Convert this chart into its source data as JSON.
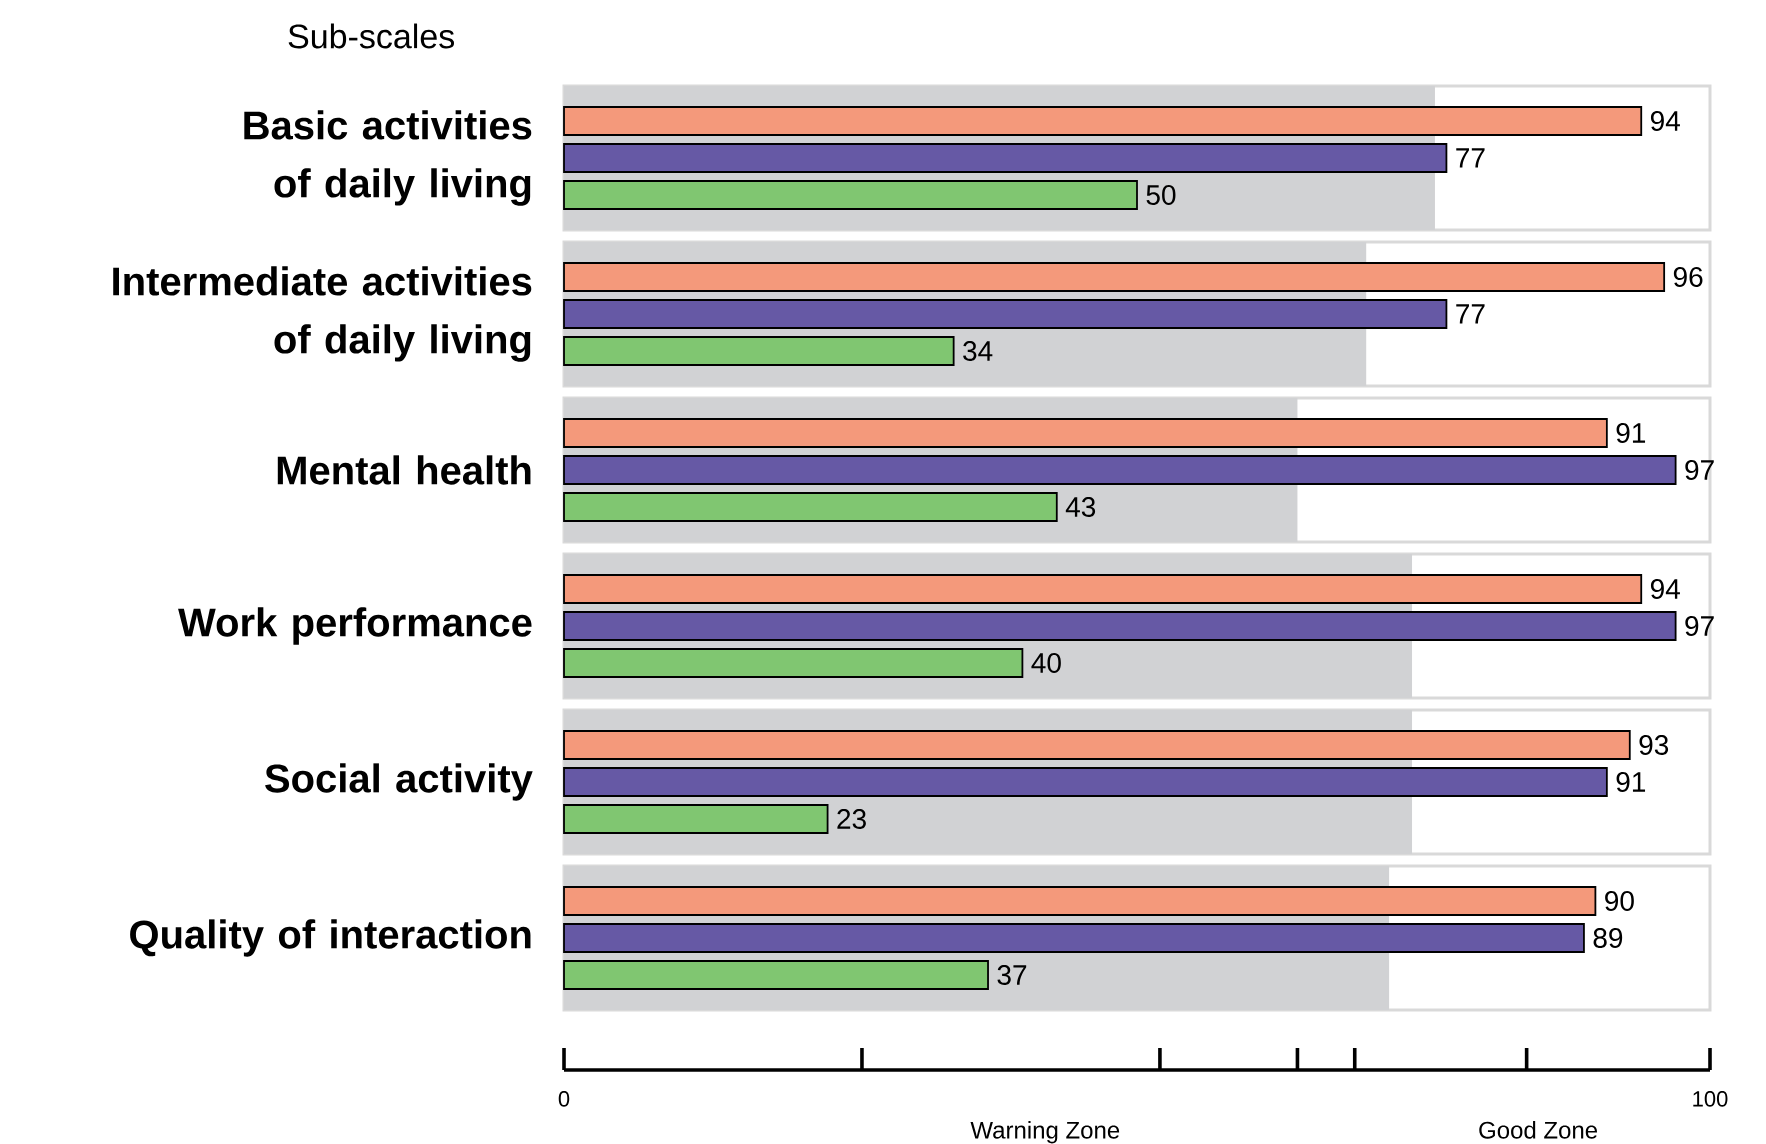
{
  "chart_data": [
    {
      "type": "bar",
      "orientation": "horizontal",
      "title": "Sub-scales",
      "categories": [
        "Basic activities of daily living"
      ],
      "series": [
        {
          "color": "#f4997b",
          "values": [
            94
          ]
        },
        {
          "color": "#6659a5",
          "values": [
            77
          ]
        },
        {
          "color": "#80c671",
          "values": [
            50
          ]
        }
      ],
      "bands": [
        {
          "axis": "x",
          "from": 0,
          "to": 76,
          "color": "#d1d2d4"
        }
      ],
      "xlim": [
        0,
        100
      ],
      "tick_labels": "y",
      "data_labels": true
    },
    {
      "type": "bar",
      "orientation": "horizontal",
      "categories": [
        "Intermediate activities of daily living"
      ],
      "series": [
        {
          "color": "#f4997b",
          "values": [
            96
          ]
        },
        {
          "color": "#6659a5",
          "values": [
            77
          ]
        },
        {
          "color": "#80c671",
          "values": [
            34
          ]
        }
      ],
      "bands": [
        {
          "axis": "x",
          "from": 0,
          "to": 70,
          "color": "#d1d2d4"
        }
      ],
      "xlim": [
        0,
        100
      ],
      "tick_labels": "y",
      "data_labels": true
    },
    {
      "type": "bar",
      "orientation": "horizontal",
      "categories": [
        "Mental health"
      ],
      "series": [
        {
          "color": "#f4997b",
          "values": [
            91
          ]
        },
        {
          "color": "#6659a5",
          "values": [
            97
          ]
        },
        {
          "color": "#80c671",
          "values": [
            43
          ]
        }
      ],
      "bands": [
        {
          "axis": "x",
          "from": 0,
          "to": 64,
          "color": "#d1d2d4"
        }
      ],
      "xlim": [
        0,
        100
      ],
      "tick_labels": "y",
      "data_labels": true
    },
    {
      "type": "bar",
      "orientation": "horizontal",
      "categories": [
        "Work performance"
      ],
      "series": [
        {
          "color": "#f4997b",
          "values": [
            94
          ]
        },
        {
          "color": "#6659a5",
          "values": [
            97
          ]
        },
        {
          "color": "#80c671",
          "values": [
            40
          ]
        }
      ],
      "bands": [
        {
          "axis": "x",
          "from": 0,
          "to": 74,
          "color": "#d1d2d4"
        }
      ],
      "xlim": [
        0,
        100
      ],
      "tick_labels": "y",
      "data_labels": true
    },
    {
      "type": "bar",
      "orientation": "horizontal",
      "categories": [
        "Social activity"
      ],
      "series": [
        {
          "color": "#f4997b",
          "values": [
            93
          ]
        },
        {
          "color": "#6659a5",
          "values": [
            91
          ]
        },
        {
          "color": "#80c671",
          "values": [
            23
          ]
        }
      ],
      "bands": [
        {
          "axis": "x",
          "from": 0,
          "to": 74,
          "color": "#d1d2d4"
        }
      ],
      "xlim": [
        0,
        100
      ],
      "tick_labels": "y",
      "data_labels": true
    },
    {
      "type": "bar",
      "orientation": "horizontal",
      "categories": [
        "Quality of interaction"
      ],
      "series": [
        {
          "color": "#f4997b",
          "values": [
            90
          ]
        },
        {
          "color": "#6659a5",
          "values": [
            89
          ]
        },
        {
          "color": "#80c671",
          "values": [
            37
          ]
        }
      ],
      "bands": [
        {
          "axis": "x",
          "from": 0,
          "to": 72,
          "color": "#d1d2d4"
        }
      ],
      "xlim": [
        0,
        100
      ],
      "data_labels": true,
      "xticks": [
        0,
        {
          "value": 26,
          "label": null
        },
        {
          "value": 52,
          "label": null
        },
        {
          "value": 64,
          "label": null
        },
        {
          "value": 69,
          "label": null
        },
        {
          "value": 84,
          "label": null
        },
        100
      ],
      "annotations": [
        "Warning Zone",
        "Good Zone"
      ]
    }
  ]
}
